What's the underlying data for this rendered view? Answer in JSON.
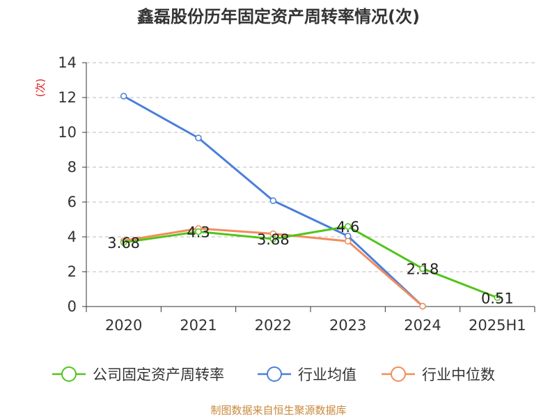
{
  "chart_data": {
    "type": "line",
    "title": "鑫磊股份历年固定资产周转率情况(次)",
    "ylabel": "(次)",
    "xlabel": "",
    "categories": [
      "2020",
      "2021",
      "2022",
      "2023",
      "2024",
      "2025H1"
    ],
    "ylim": [
      0,
      14
    ],
    "yticks": [
      0,
      2,
      4,
      6,
      8,
      10,
      12,
      14
    ],
    "grid": true,
    "legend_position": "bottom",
    "series": [
      {
        "name": "公司固定资产周转率",
        "color": "#52c41a",
        "values": [
          3.68,
          4.3,
          3.88,
          4.6,
          2.18,
          0.51
        ],
        "labels": [
          "3.68",
          "4.3",
          "3.88",
          "4.6",
          "2.18",
          "0.51"
        ]
      },
      {
        "name": "行业均值",
        "color": "#4a7fd9",
        "values": [
          12.08,
          9.68,
          6.08,
          4.05,
          0.02,
          null
        ]
      },
      {
        "name": "行业中位数",
        "color": "#f28c5b",
        "values": [
          3.78,
          4.48,
          4.18,
          3.75,
          0.02,
          null
        ]
      }
    ],
    "source": "制图数据来自恒生聚源数据库"
  },
  "colors": {
    "axis": "#333333",
    "grid": "#bbbbbb",
    "ylabel": "#e02020",
    "source": "#c8893a"
  }
}
